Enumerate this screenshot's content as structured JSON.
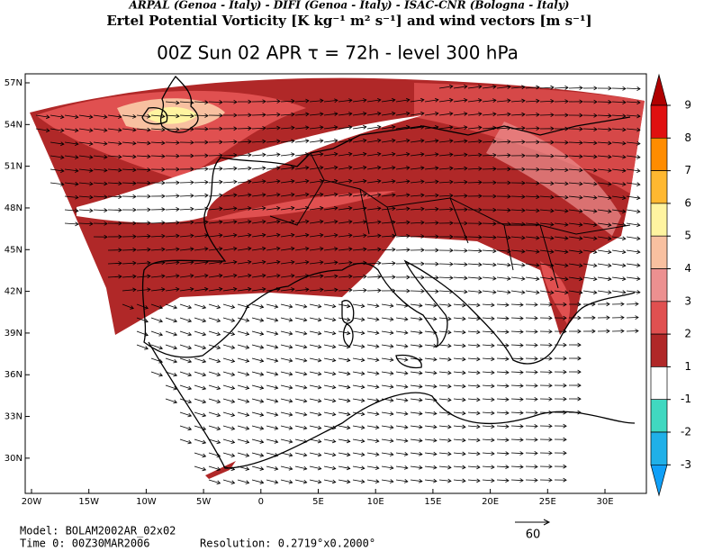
{
  "header": {
    "credits": "ARPAL (Genoa - Italy)  -  DIFI (Genoa - Italy)  -  ISAC-CNR (Bologna - Italy)",
    "title": "Ertel Potential Vorticity [K kg⁻¹ m² s⁻¹] and wind vectors [m s⁻¹]",
    "subtitle": "00Z Sun 02 APR   τ = 72h   -   level 300 hPa"
  },
  "map": {
    "lat_ticks": [
      {
        "value": 57,
        "label": "57N"
      },
      {
        "value": 54,
        "label": "54N"
      },
      {
        "value": 51,
        "label": "51N"
      },
      {
        "value": 48,
        "label": "48N"
      },
      {
        "value": 45,
        "label": "45N"
      },
      {
        "value": 42,
        "label": "42N"
      },
      {
        "value": 39,
        "label": "39N"
      },
      {
        "value": 36,
        "label": "36N"
      },
      {
        "value": 33,
        "label": "33N"
      },
      {
        "value": 30,
        "label": "30N"
      }
    ],
    "lon_ticks": [
      {
        "value": -20,
        "label": "20W"
      },
      {
        "value": -15,
        "label": "15W"
      },
      {
        "value": -10,
        "label": "10W"
      },
      {
        "value": -5,
        "label": "5W"
      },
      0,
      {
        "value": 5,
        "label": "5E"
      },
      {
        "value": 10,
        "label": "10E"
      },
      {
        "value": 15,
        "label": "15E"
      },
      {
        "value": 20,
        "label": "20E"
      },
      {
        "value": 25,
        "label": "25E"
      },
      {
        "value": 30,
        "label": "30E"
      }
    ],
    "reference_vector": 60
  },
  "colorbar": {
    "levels": [
      9,
      8,
      7,
      6,
      5,
      4,
      3,
      2,
      1,
      -1,
      -2,
      -3
    ],
    "colors": [
      "#b00000",
      "#e01010",
      "#ff8c00",
      "#ffb830",
      "#fff4a0",
      "#f8c0a0",
      "#ec9090",
      "#e05050",
      "#b02828",
      "#ffffff",
      "#40d8c0",
      "#20b0e8",
      "#10a0f8"
    ]
  },
  "footer": {
    "model": "Model: BOLAM2002AR_02x02",
    "time": "Time 0: 00Z30MAR2006",
    "resolution": "Resolution: 0.2719°x0.2000°"
  }
}
